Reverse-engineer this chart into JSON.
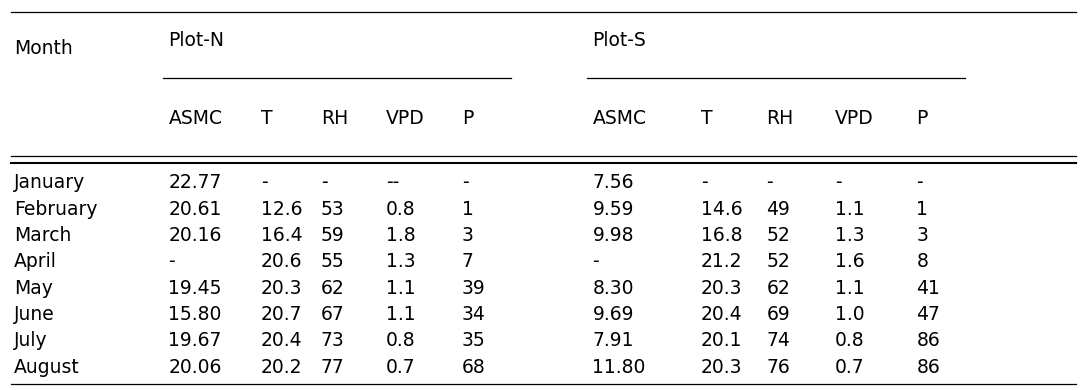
{
  "months": [
    "January",
    "February",
    "March",
    "April",
    "May",
    "June",
    "July",
    "August"
  ],
  "plot_n": {
    "ASMC": [
      "22.77",
      "20.61",
      "20.16",
      "-",
      "19.45",
      "15.80",
      "19.67",
      "20.06"
    ],
    "T": [
      "-",
      "12.6",
      "16.4",
      "20.6",
      "20.3",
      "20.7",
      "20.4",
      "20.2"
    ],
    "RH": [
      "-",
      "53",
      "59",
      "55",
      "62",
      "67",
      "73",
      "77"
    ],
    "VPD": [
      "--",
      "0.8",
      "1.8",
      "1.3",
      "1.1",
      "1.1",
      "0.8",
      "0.7"
    ],
    "P": [
      "-",
      "1",
      "3",
      "7",
      "39",
      "34",
      "35",
      "68"
    ]
  },
  "plot_s": {
    "ASMC": [
      "7.56",
      "9.59",
      "9.98",
      "-",
      "8.30",
      "9.69",
      "7.91",
      "11.80"
    ],
    "T": [
      "-",
      "14.6",
      "16.8",
      "21.2",
      "20.3",
      "20.4",
      "20.1",
      "20.3"
    ],
    "RH": [
      "-",
      "49",
      "52",
      "52",
      "62",
      "69",
      "74",
      "76"
    ],
    "VPD": [
      "-",
      "1.1",
      "1.3",
      "1.6",
      "1.1",
      "1.0",
      "0.8",
      "0.7"
    ],
    "P": [
      "-",
      "1",
      "3",
      "8",
      "41",
      "47",
      "86",
      "86"
    ]
  },
  "col_headers": [
    "ASMC",
    "T",
    "RH",
    "VPD",
    "P"
  ],
  "group_headers": [
    "Plot-N",
    "Plot-S"
  ],
  "row_header": "Month",
  "bg_color": "#ffffff",
  "text_color": "#000000",
  "font_size": 13.5
}
